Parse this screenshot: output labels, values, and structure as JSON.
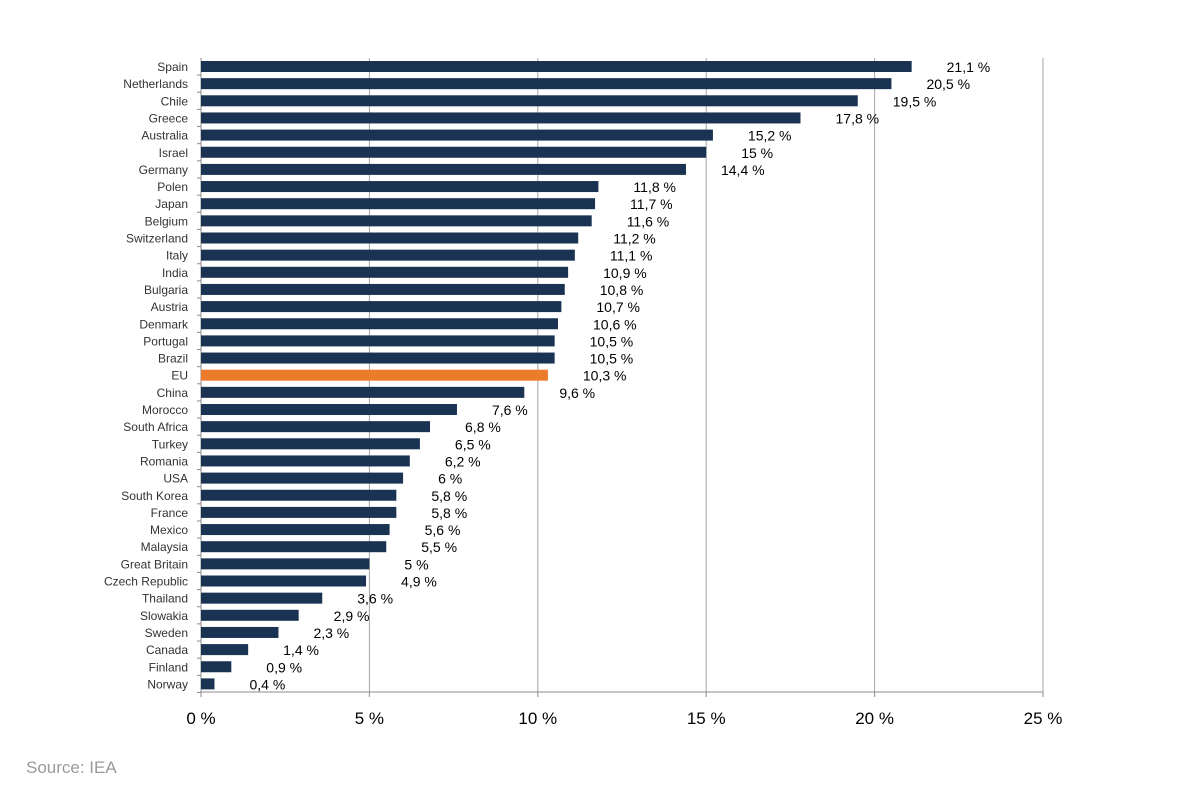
{
  "chart_data": {
    "type": "bar",
    "orientation": "horizontal",
    "categories": [
      "Spain",
      "Netherlands",
      "Chile",
      "Greece",
      "Australia",
      "Israel",
      "Germany",
      "Polen",
      "Japan",
      "Belgium",
      "Switzerland",
      "Italy",
      "India",
      "Bulgaria",
      "Austria",
      "Denmark",
      "Portugal",
      "Brazil",
      "EU",
      "China",
      "Morocco",
      "South Africa",
      "Turkey",
      "Romania",
      "USA",
      "South Korea",
      "France",
      "Mexico",
      "Malaysia",
      "Great Britain",
      "Czech Republic",
      "Thailand",
      "Slowakia",
      "Sweden",
      "Canada",
      "Finland",
      "Norway"
    ],
    "values": [
      21.1,
      20.5,
      19.5,
      17.8,
      15.2,
      15,
      14.4,
      11.8,
      11.7,
      11.6,
      11.2,
      11.1,
      10.9,
      10.8,
      10.7,
      10.6,
      10.5,
      10.5,
      10.3,
      9.6,
      7.6,
      6.8,
      6.5,
      6.2,
      6,
      5.8,
      5.8,
      5.6,
      5.5,
      5,
      4.9,
      3.6,
      2.9,
      2.3,
      1.4,
      0.9,
      0.4
    ],
    "data_labels": [
      "21,1 %",
      "20,5 %",
      "19,5 %",
      "17,8 %",
      "15,2 %",
      "15 %",
      "14,4 %",
      "11,8 %",
      "11,7 %",
      "11,6 %",
      "11,2 %",
      "11,1 %",
      "10,9 %",
      "10,8 %",
      "10,7 %",
      "10,6 %",
      "10,5 %",
      "10,5 %",
      "10,3 %",
      "9,6 %",
      "7,6 %",
      "6,8 %",
      "6,5 %",
      "6,2 %",
      "6 %",
      "5,8 %",
      "5,8 %",
      "5,6 %",
      "5,5 %",
      "5 %",
      "4,9 %",
      "3,6 %",
      "2,9 %",
      "2,3 %",
      "1,4 %",
      "0,9 %",
      "0,4 %"
    ],
    "highlight_category": "EU",
    "x_ticks": [
      0,
      5,
      10,
      15,
      20,
      25
    ],
    "x_tick_labels": [
      "0 %",
      "5 %",
      "10 %",
      "15 %",
      "20 %",
      "25 %"
    ],
    "xlim": [
      0,
      25
    ],
    "title": "",
    "xlabel": "",
    "ylabel": "",
    "grid": "vertical",
    "legend": "none",
    "colors": {
      "bar": "#1a3353",
      "highlight": "#ec7b2c",
      "grid": "#a6a6a6",
      "axis": "#8c8c8c",
      "label": "#333333",
      "value_label": "#000000"
    }
  },
  "source": "Source: IEA"
}
